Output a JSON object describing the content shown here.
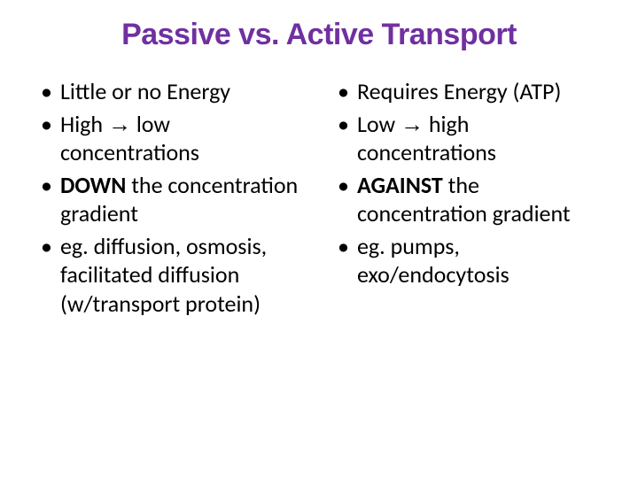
{
  "title": {
    "text": "Passive vs. Active Transport",
    "color": "#7030a0",
    "fontsize": 34
  },
  "body": {
    "fontsize": 26,
    "color": "#000000",
    "line_height": 1.25
  },
  "arrow_glyph": "→",
  "left": {
    "items": [
      {
        "pre": "Little or no Energy"
      },
      {
        "pre": "High ",
        "arrow": true,
        "post": " low concentrations"
      },
      {
        "bold": "DOWN",
        "post": " the concentration gradient"
      },
      {
        "pre": "eg. diffusion, osmosis, facilitated diffusion (w/transport protein)"
      }
    ]
  },
  "right": {
    "items": [
      {
        "pre": "Requires Energy (ATP)"
      },
      {
        "pre": "Low ",
        "arrow": true,
        "post": " high concentrations"
      },
      {
        "bold": "AGAINST",
        "post": " the concentration gradient"
      },
      {
        "pre": "eg. pumps, exo/endocytosis"
      }
    ]
  }
}
